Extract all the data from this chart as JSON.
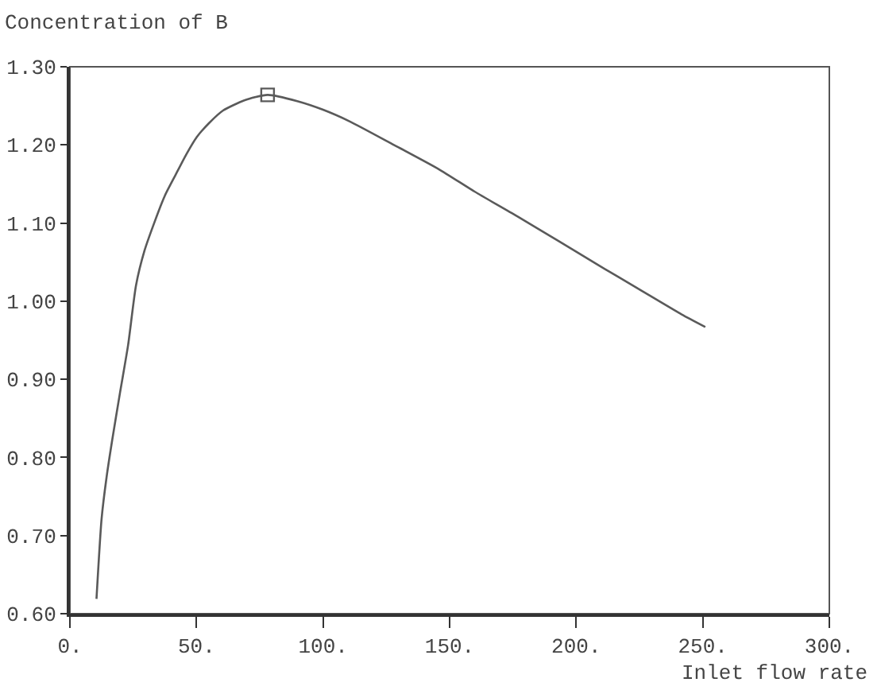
{
  "chart_data": {
    "type": "line",
    "xlabel": "Inlet flow rate",
    "ylabel": "Concentration of B",
    "series": [
      {
        "color": "#5a5a5a",
        "marker": "none",
        "x": [
          10.5,
          12.5,
          14.5,
          16.7,
          19.8,
          23,
          26.1,
          29.5,
          33.4,
          37.5,
          41.8,
          46,
          50.1,
          55,
          60.5,
          68.9,
          78.1,
          89.8,
          100,
          110.6,
          128,
          145.7,
          160,
          177,
          193,
          208.3,
          225,
          241.7,
          251
        ],
        "values": [
          0.619,
          0.721,
          0.775,
          0.822,
          0.883,
          0.944,
          1.02,
          1.065,
          1.101,
          1.135,
          1.162,
          1.188,
          1.21,
          1.228,
          1.244,
          1.257,
          1.264,
          1.256,
          1.245,
          1.23,
          1.2,
          1.169,
          1.14,
          1.108,
          1.077,
          1.047,
          1.015,
          0.983,
          0.967
        ]
      },
      {
        "type": "scatter",
        "color": "#5a5a5a",
        "marker": "square",
        "x": [
          78.1
        ],
        "values": [
          1.264
        ]
      }
    ],
    "xlim": [
      0,
      300
    ],
    "ylim": [
      0.6,
      1.3
    ],
    "xticks": [
      {
        "value": 0,
        "label": "0."
      },
      {
        "value": 50,
        "label": "50."
      },
      {
        "value": 100,
        "label": "100."
      },
      {
        "value": 150,
        "label": "150."
      },
      {
        "value": 200,
        "label": "200."
      },
      {
        "value": 250,
        "label": "250."
      },
      {
        "value": 300,
        "label": "300."
      }
    ],
    "yticks": [
      {
        "value": 0.6,
        "label": "0.60"
      },
      {
        "value": 0.7,
        "label": "0.70"
      },
      {
        "value": 0.8,
        "label": "0.80"
      },
      {
        "value": 0.9,
        "label": "0.90"
      },
      {
        "value": 1.0,
        "label": "1.00"
      },
      {
        "value": 1.1,
        "label": "1.10"
      },
      {
        "value": 1.2,
        "label": "1.20"
      },
      {
        "value": 1.3,
        "label": "1.30"
      }
    ],
    "grid": false
  }
}
